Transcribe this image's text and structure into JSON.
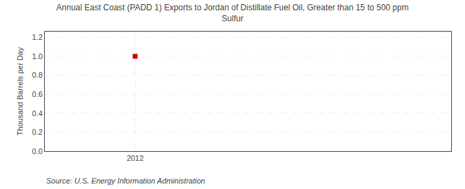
{
  "chart_data": {
    "type": "scatter",
    "title": "Annual East Coast (PADD 1) Exports to Jordan of Distillate Fuel Oil, Greater than 15 to 500 ppm\nSulfur",
    "ylabel": "Thousand Barrels per Day",
    "annotations": [
      "Source: U.S. Energy Information Administration"
    ],
    "x": [
      2012
    ],
    "values": [
      1.0
    ],
    "color": "#cc0000",
    "marker": "square",
    "xlim": [
      2011.6,
      2013.4
    ],
    "xticks": [
      2012
    ],
    "ylim": [
      0.0,
      1.26
    ],
    "yticks": [
      {
        "value": 0.0,
        "label": "0.0"
      },
      0.2,
      0.4,
      0.6,
      0.8,
      {
        "value": 1.0,
        "label": "1.0"
      },
      1.2
    ],
    "grid": true
  }
}
